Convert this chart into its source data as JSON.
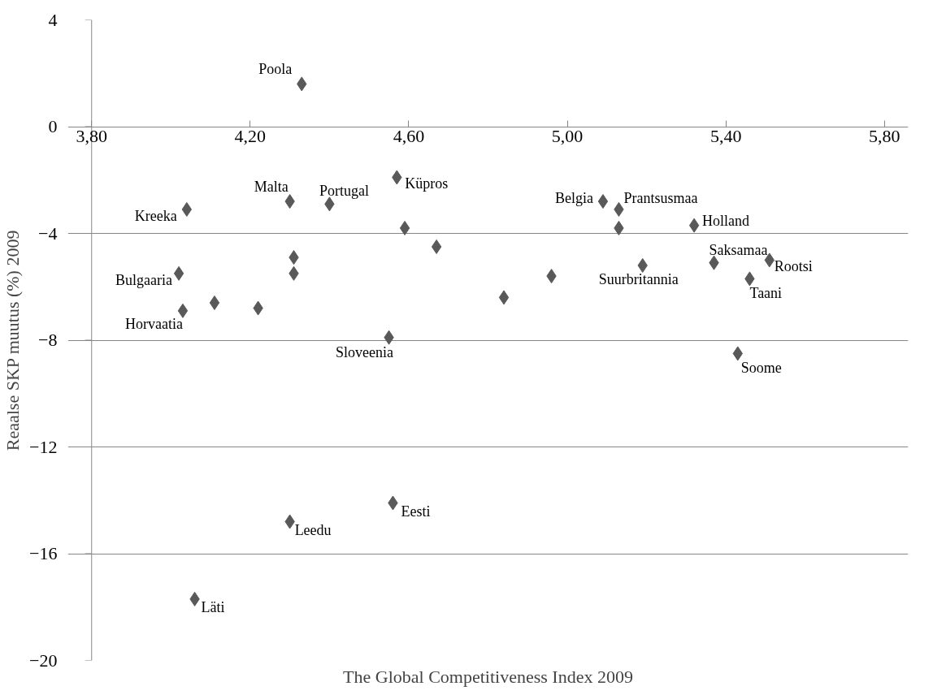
{
  "chart_data": {
    "type": "scatter",
    "xlabel": "The Global Competitiveness Index 2009",
    "ylabel": "Reaalse SKP muutus (%) 2009",
    "xlim": [
      3.8,
      5.8
    ],
    "xticks": [
      {
        "value": 3.8,
        "label": "3,80"
      },
      {
        "value": 4.2,
        "label": "4,20"
      },
      {
        "value": 4.6,
        "label": "4,60"
      },
      {
        "value": 5.0,
        "label": "5,00"
      },
      {
        "value": 5.4,
        "label": "5,40"
      },
      {
        "value": 5.8,
        "label": "5,80"
      }
    ],
    "ylim": [
      -20,
      4
    ],
    "yticks": [
      4,
      0,
      -4,
      -8,
      -12,
      -16,
      -20
    ],
    "grid": "y",
    "marker": "diamond",
    "series": [
      {
        "color": "#595959",
        "x": [
          4.33,
          4.04,
          4.3,
          4.4,
          4.57,
          4.59,
          4.67,
          4.31,
          4.31,
          4.02,
          4.11,
          4.03,
          4.22,
          4.55,
          4.84,
          5.09,
          5.13,
          5.13,
          5.32,
          5.19,
          4.96,
          5.37,
          5.51,
          5.46,
          5.43,
          4.56,
          4.3,
          4.06
        ],
        "values": [
          1.6,
          -3.1,
          -2.8,
          -2.9,
          -1.9,
          -3.8,
          -4.5,
          -4.9,
          -5.5,
          -5.5,
          -6.6,
          -6.9,
          -6.8,
          -7.9,
          -6.4,
          -2.8,
          -3.1,
          -3.8,
          -3.7,
          -5.2,
          -5.6,
          -5.1,
          -5.0,
          -5.7,
          -8.5,
          -14.1,
          -14.8,
          -17.7
        ],
        "value_labels": [
          "Poola",
          "Kreeka",
          "Malta",
          "Portugal",
          "Küpros",
          null,
          null,
          null,
          null,
          "Bulgaaria",
          null,
          "Horvaatia",
          null,
          "Sloveenia",
          null,
          "Belgia",
          "Prantsusmaa",
          null,
          "Holland",
          "Suurbritannia",
          null,
          "Saksamaa",
          "Rootsi",
          "Taani",
          "Soome",
          "Eesti",
          "Leedu",
          "Läti"
        ]
      }
    ]
  }
}
